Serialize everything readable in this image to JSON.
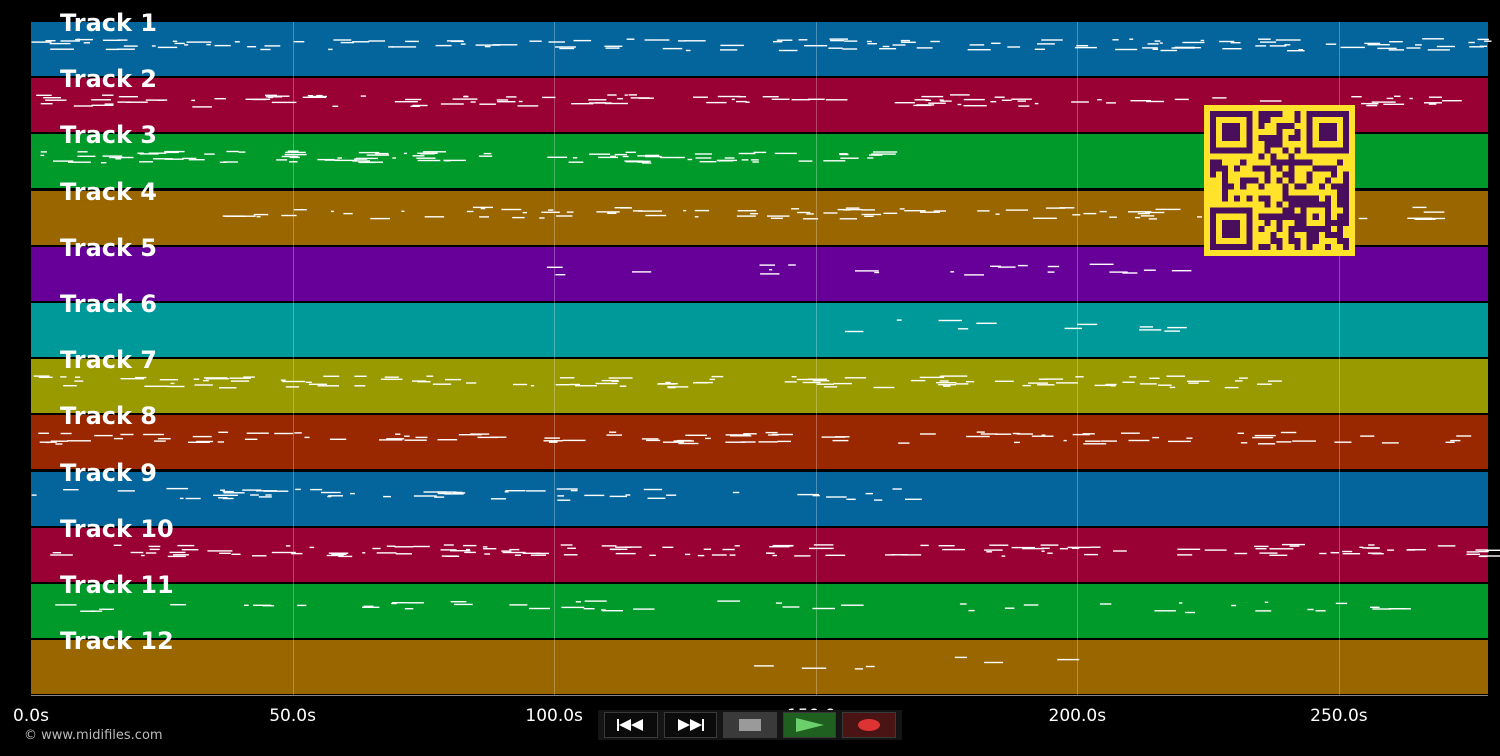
{
  "tracks": [
    {
      "label": "Track 1",
      "color": "#03659c"
    },
    {
      "label": "Track 2",
      "color": "#990033"
    },
    {
      "label": "Track 3",
      "color": "#009a2a"
    },
    {
      "label": "Track 4",
      "color": "#996600"
    },
    {
      "label": "Track 5",
      "color": "#660099"
    },
    {
      "label": "Track 6",
      "color": "#009999"
    },
    {
      "label": "Track 7",
      "color": "#999900"
    },
    {
      "label": "Track 8",
      "color": "#992800"
    },
    {
      "label": "Track 9",
      "color": "#03659c"
    },
    {
      "label": "Track 10",
      "color": "#990033"
    },
    {
      "label": "Track 11",
      "color": "#009a2a"
    },
    {
      "label": "Track 12",
      "color": "#996600"
    }
  ],
  "axis": {
    "ticks": [
      "0.0s",
      "50.0s",
      "100.0s",
      "150.0s",
      "200.0s",
      "250.0s"
    ],
    "tick_values": [
      0,
      50,
      100,
      150,
      200,
      250
    ],
    "max_seconds": 278.5
  },
  "credit": "© www.midifiles.com",
  "transport": {
    "buttons": [
      {
        "name": "rewind-button",
        "icon": "rewind-icon"
      },
      {
        "name": "fast-forward-button",
        "icon": "fast-forward-icon"
      },
      {
        "name": "stop-button",
        "icon": "stop-icon"
      },
      {
        "name": "play-button",
        "icon": "play-icon"
      },
      {
        "name": "record-button",
        "icon": "record-icon"
      }
    ]
  },
  "qr_code": {
    "icon": "qr-code-icon",
    "fg": "#ffe32a",
    "bg": "#4a0f5c"
  },
  "colors": {
    "background": "#000000",
    "note": "#ffffff",
    "grid": "rgba(255,255,255,0.28)"
  }
}
